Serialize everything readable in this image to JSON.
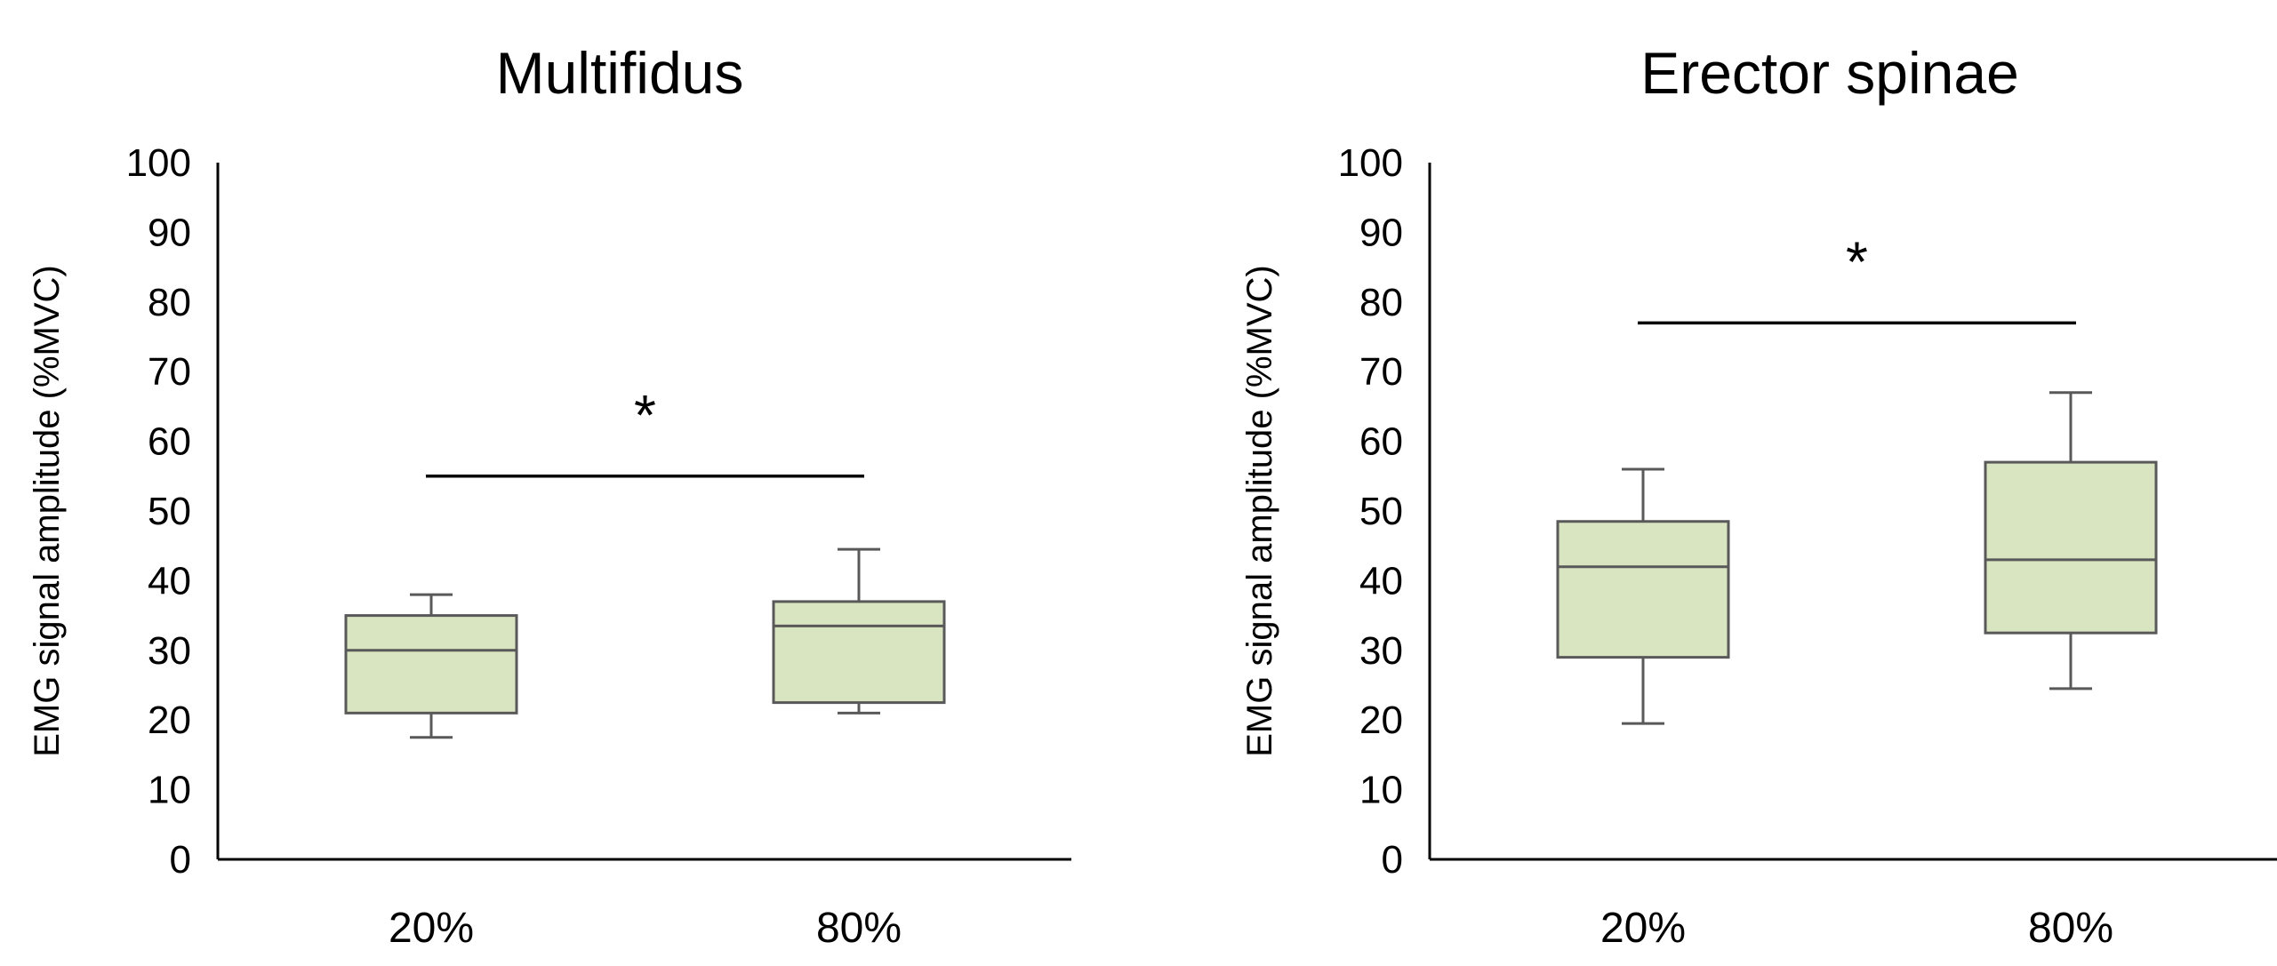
{
  "chart_data": [
    {
      "type": "box",
      "title": "Multifidus",
      "ylabel": "EMG signal amplitude (%MVC)",
      "xlabel": "",
      "ylim": [
        0,
        100
      ],
      "yticks": [
        0,
        10,
        20,
        30,
        40,
        50,
        60,
        70,
        80,
        90,
        100
      ],
      "grid": false,
      "categories": [
        "20%",
        "80%"
      ],
      "boxes": [
        {
          "min": 17.5,
          "q1": 21,
          "median": 30,
          "q3": 35,
          "max": 38
        },
        {
          "min": 21,
          "q1": 22.5,
          "median": 33.5,
          "q3": 37,
          "max": 44.5
        }
      ],
      "significance": {
        "from": "20%",
        "to": "80%",
        "y": 55,
        "label": "*"
      },
      "colors": {
        "box_fill": "#d9e4c0",
        "box_stroke": "#595959",
        "axis": "#000000"
      }
    },
    {
      "type": "box",
      "title": "Erector spinae",
      "ylabel": "EMG signal amplitude (%MVC)",
      "xlabel": "",
      "ylim": [
        0,
        100
      ],
      "yticks": [
        0,
        10,
        20,
        30,
        40,
        50,
        60,
        70,
        80,
        90,
        100
      ],
      "grid": false,
      "categories": [
        "20%",
        "80%"
      ],
      "boxes": [
        {
          "min": 19.5,
          "q1": 29,
          "median": 42,
          "q3": 48.5,
          "max": 56
        },
        {
          "min": 24.5,
          "q1": 32.5,
          "median": 43,
          "q3": 57,
          "max": 67
        }
      ],
      "significance": {
        "from": "20%",
        "to": "80%",
        "y": 77,
        "label": "*"
      },
      "colors": {
        "box_fill": "#d9e4c0",
        "box_stroke": "#595959",
        "axis": "#000000"
      }
    }
  ]
}
